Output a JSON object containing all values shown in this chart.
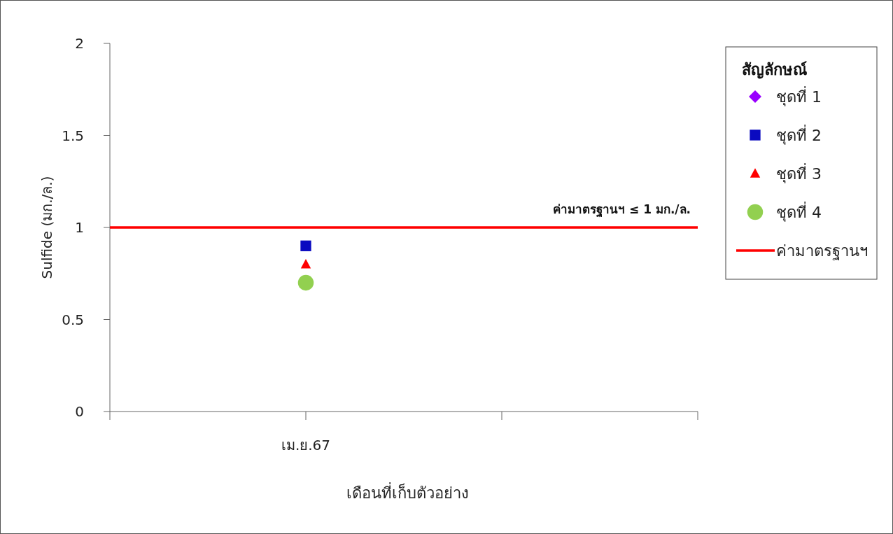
{
  "chart_data": {
    "type": "scatter",
    "xlabel": "เดือนที่เก็บตัวอย่าง",
    "ylabel": "Sulfide  (มก./ล.)",
    "legend_title": "สัญลักษณ์",
    "legend": "right",
    "categories": [
      null,
      "เม.ย.67",
      null,
      null
    ],
    "ylim": [
      0,
      2
    ],
    "yticks": [
      0,
      0.5,
      1,
      1.5,
      2
    ],
    "series": [
      {
        "name": "ชุดที่ 1",
        "color": "#9900ff",
        "marker": "diamond",
        "values": [
          null,
          null,
          null,
          null
        ]
      },
      {
        "name": "ชุดที่ 2",
        "color": "#0a0ac0",
        "marker": "square",
        "x": [
          "เม.ย.67"
        ],
        "values": [
          0.9
        ]
      },
      {
        "name": "ชุดที่ 3",
        "color": "#ff0000",
        "marker": "triangle",
        "x": [
          "เม.ย.67"
        ],
        "values": [
          0.8
        ]
      },
      {
        "name": "ชุดที่ 4",
        "color": "#92d050",
        "marker": "circle",
        "x": [
          "เม.ย.67"
        ],
        "values": [
          0.7
        ]
      }
    ],
    "ref_lines": [
      {
        "axis": "y",
        "value": 1,
        "label": "ค่ามาตรฐานฯ",
        "color": "#ff0000",
        "line_style": "solid"
      }
    ],
    "annotations": [
      "ค่ามาตรฐานฯ ≤ 1 มก./ล."
    ]
  }
}
